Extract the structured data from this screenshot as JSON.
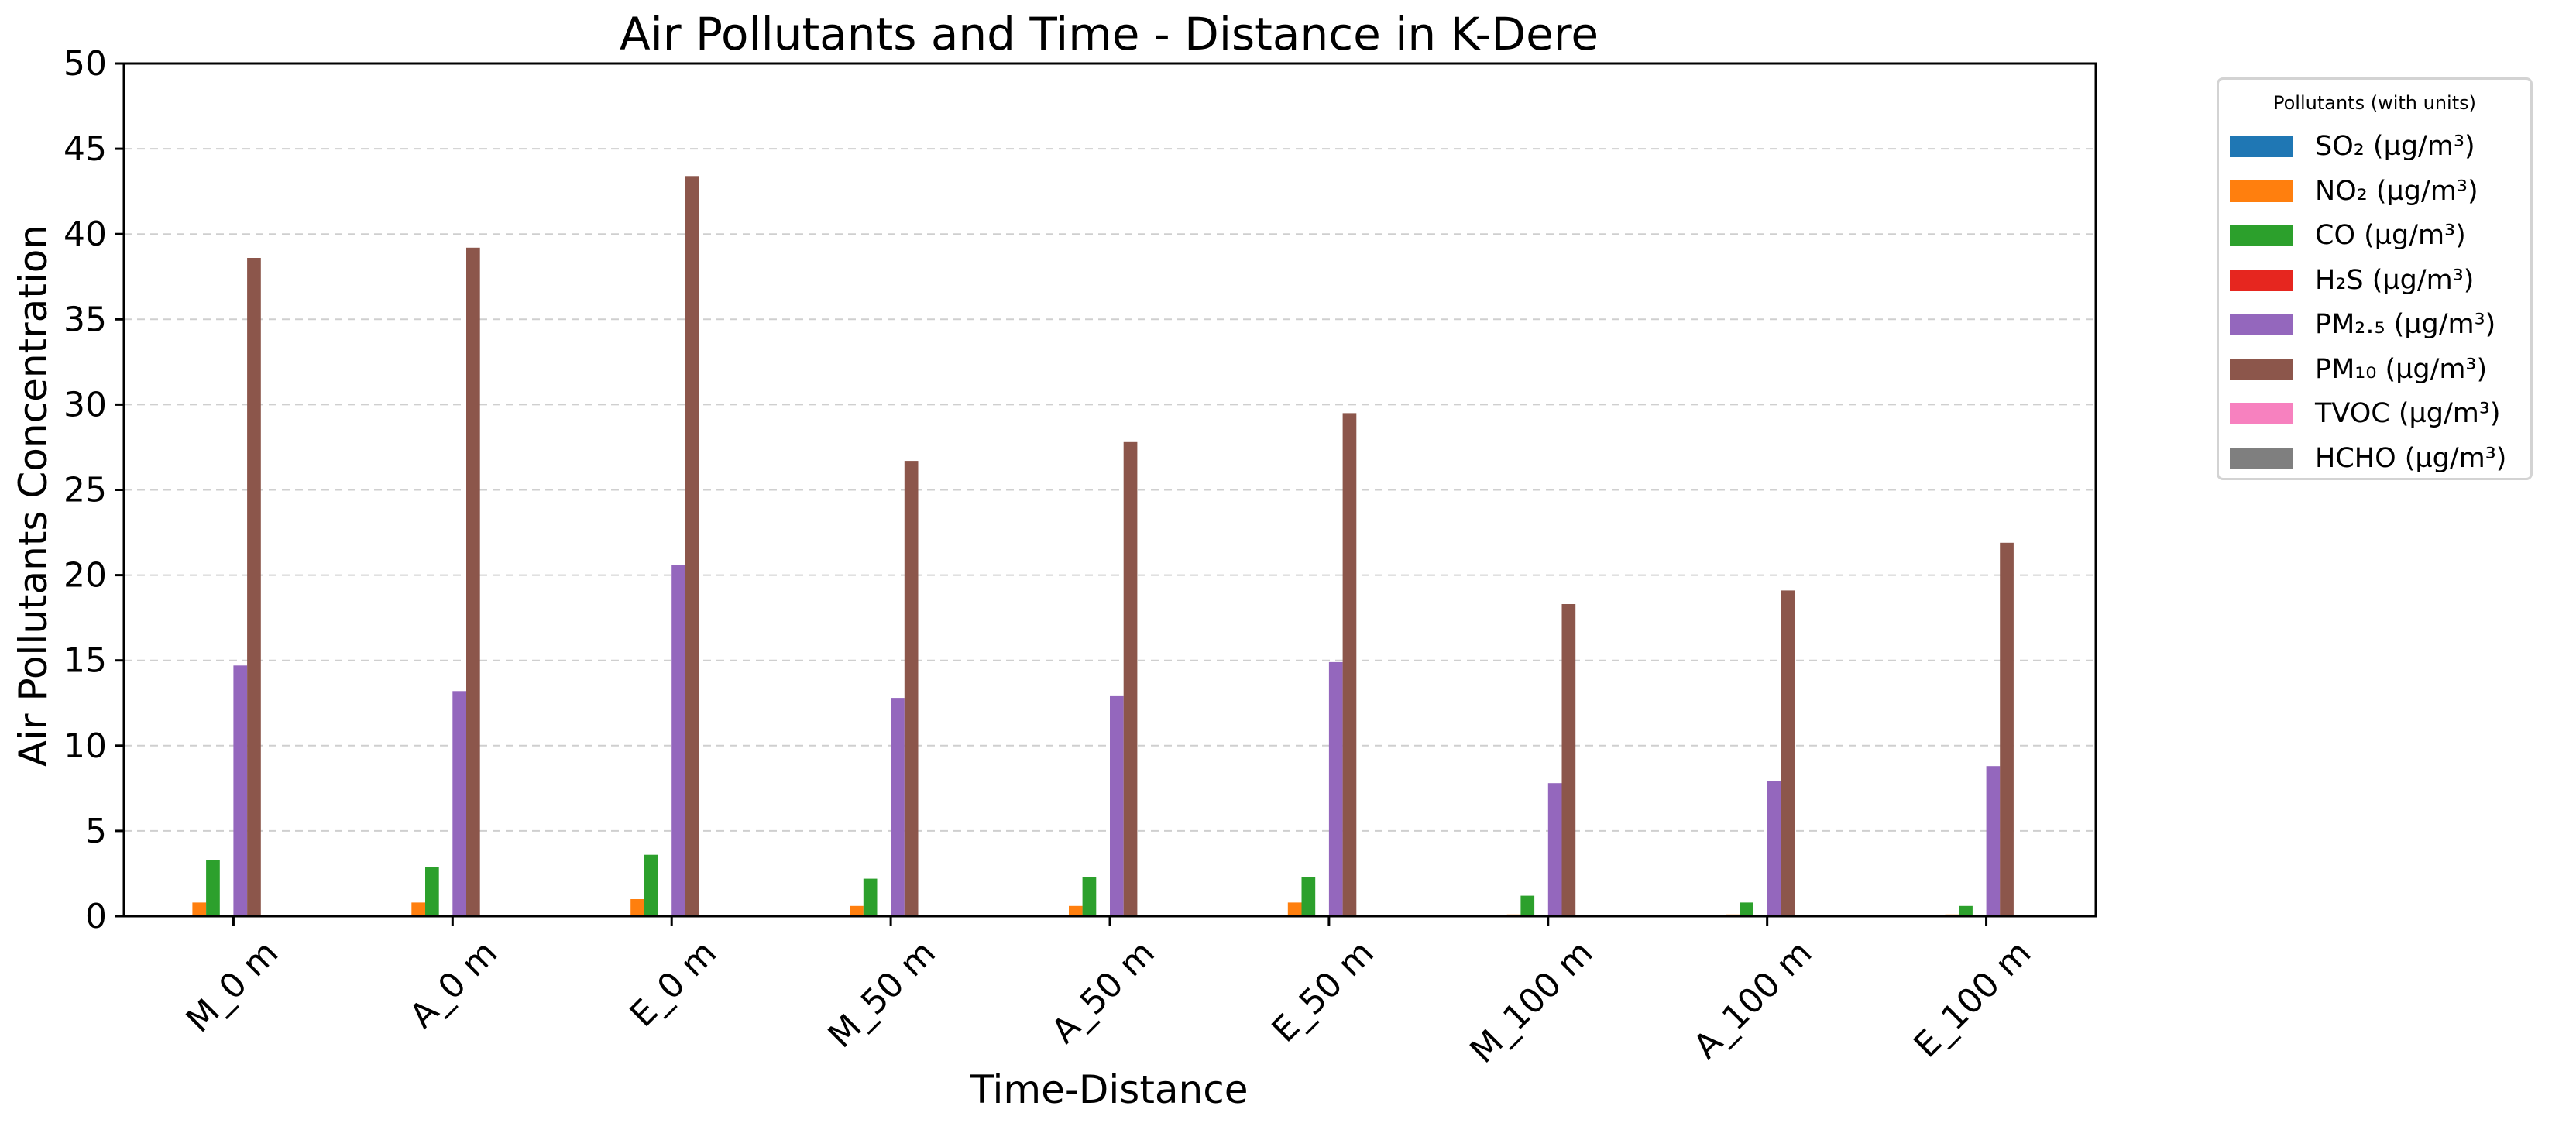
{
  "chart_data": {
    "type": "bar",
    "title": "Air Pollutants and Time - Distance in K-Dere",
    "xlabel": "Time-Distance",
    "ylabel": "Air Pollutants Concentration",
    "ylim": [
      0,
      50
    ],
    "yticks": [
      0,
      5,
      10,
      15,
      20,
      25,
      30,
      35,
      40,
      45,
      50
    ],
    "grid": "horizontal dashed",
    "legend_position": "outside right",
    "legend_title": "Pollutants (with units)",
    "categories": [
      "M_0 m",
      "A_0 m",
      "E_0 m",
      "M_50 m",
      "A_50 m",
      "E_50 m",
      "M_100 m",
      "A_100 m",
      "E_100 m"
    ],
    "series": [
      {
        "name": "SO₂ (µg/m³)",
        "color": "#1f77b4",
        "values": [
          0,
          0,
          0,
          0,
          0,
          0,
          0,
          0,
          0
        ]
      },
      {
        "name": "NO₂ (µg/m³)",
        "color": "#ff7f0e",
        "values": [
          0.8,
          0.8,
          1.0,
          0.6,
          0.6,
          0.8,
          0.1,
          0.1,
          0.1
        ]
      },
      {
        "name": "CO (µg/m³)",
        "color": "#2ca02c",
        "values": [
          3.3,
          2.9,
          3.6,
          2.2,
          2.3,
          2.3,
          1.2,
          0.8,
          0.6
        ]
      },
      {
        "name": "H₂S (µg/m³)",
        "color": "#e6261f",
        "values": [
          0,
          0,
          0,
          0,
          0,
          0,
          0,
          0,
          0
        ]
      },
      {
        "name": "PM₂.₅ (µg/m³)",
        "color": "#9467bd",
        "values": [
          14.7,
          13.2,
          20.6,
          12.8,
          12.9,
          14.9,
          7.8,
          7.9,
          8.8
        ]
      },
      {
        "name": "PM₁₀ (µg/m³)",
        "color": "#8c564b",
        "values": [
          38.6,
          39.2,
          43.4,
          26.7,
          27.8,
          29.5,
          18.3,
          19.1,
          21.9
        ]
      },
      {
        "name": "TVOC (µg/m³)",
        "color": "#f781bf",
        "values": [
          0,
          0,
          0,
          0,
          0,
          0,
          0,
          0,
          0
        ]
      },
      {
        "name": "HCHO (µg/m³)",
        "color": "#7f7f7f",
        "values": [
          0,
          0,
          0,
          0,
          0,
          0,
          0,
          0,
          0
        ]
      }
    ]
  }
}
